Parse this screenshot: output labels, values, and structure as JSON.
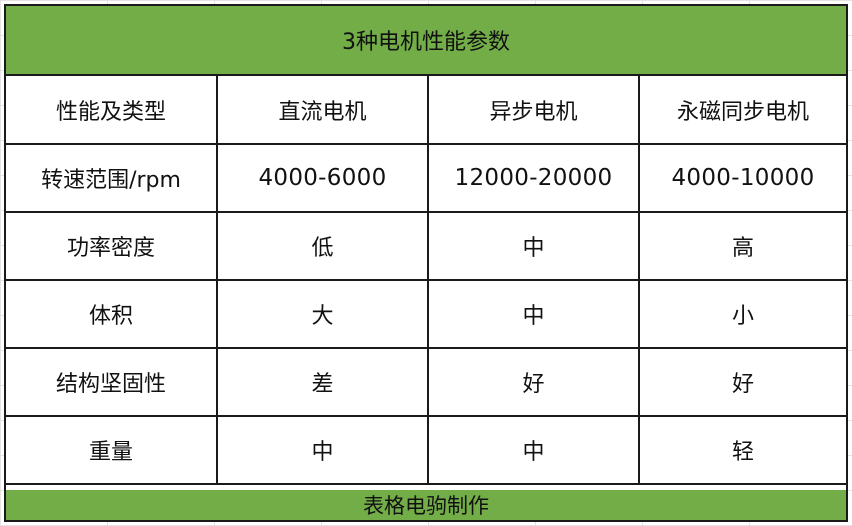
{
  "table": {
    "title": "3种电机性能参数",
    "header": [
      "性能及类型",
      "直流电机",
      "异步电机",
      "永磁同步电机"
    ],
    "rows": [
      [
        "转速范围/rpm",
        "4000-6000",
        "12000-20000",
        "4000-10000"
      ],
      [
        "功率密度",
        "低",
        "中",
        "高"
      ],
      [
        "体积",
        "大",
        "中",
        "小"
      ],
      [
        "结构坚固性",
        "差",
        "好",
        "好"
      ],
      [
        "重量",
        "中",
        "中",
        "轻"
      ]
    ],
    "footer": "表格电驹制作"
  },
  "colors": {
    "accent_green": "#72ad47",
    "border": "#1a1a1a"
  }
}
